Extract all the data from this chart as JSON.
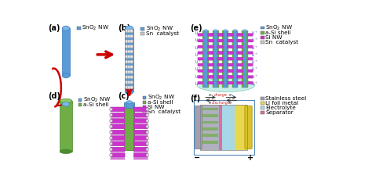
{
  "background_color": "#ffffff",
  "panel_labels": [
    "(a)",
    "(b)",
    "(c)",
    "(d)",
    "(e)",
    "(f)"
  ],
  "panel_label_fontsize": 7,
  "colors": {
    "sno2_nw": "#5B9BD5",
    "sno2_nw_light": "#7BB8E8",
    "a_si_shell": "#70AD47",
    "a_si_shell_dark": "#4A8A30",
    "si_nw": "#CC33CC",
    "si_nw_dark": "#993399",
    "sn_catalyst": "#C8C8C8",
    "sn_catalyst_dark": "#999999",
    "stainless_steel": "#A0A0B0",
    "li_foil": "#E8D850",
    "electrolyte": "#A8D8E8",
    "separator": "#D870A0",
    "arrow_red": "#CC0000",
    "li_ion_text": "#4444BB",
    "charge_text": "#CC2222"
  },
  "legend_fontsize": 5.2
}
